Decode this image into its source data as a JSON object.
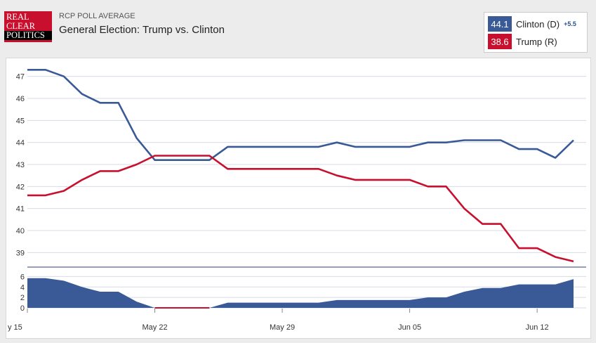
{
  "header": {
    "logo_lines": [
      "REAL",
      "CLEAR",
      "POLITICS"
    ],
    "eyebrow": "RCP POLL AVERAGE",
    "title": "General Election: Trump vs. Clinton"
  },
  "legend": {
    "clinton": {
      "value": "44.1",
      "label": "Clinton (D)",
      "spread": "+5.5",
      "color": "#3a5a97"
    },
    "trump": {
      "value": "38.6",
      "label": "Trump (R)",
      "color": "#c8102e"
    }
  },
  "chart_data": {
    "type": "line",
    "x_labels": [
      "y 15",
      "May 22",
      "May 29",
      "Jun 05",
      "Jun 12"
    ],
    "x_label_day": [
      0,
      7,
      14,
      21,
      28
    ],
    "xlim": [
      0,
      30
    ],
    "ylim": [
      38.5,
      47.5
    ],
    "yticks": [
      39,
      40,
      41,
      42,
      43,
      44,
      45,
      46,
      47
    ],
    "grid": true,
    "series": [
      {
        "name": "Clinton (D)",
        "color": "#3a5a97",
        "points": [
          [
            0,
            47.3
          ],
          [
            1,
            47.3
          ],
          [
            2,
            47.0
          ],
          [
            3,
            46.2
          ],
          [
            4,
            45.8
          ],
          [
            5,
            45.8
          ],
          [
            6,
            44.2
          ],
          [
            7,
            43.2
          ],
          [
            8,
            43.2
          ],
          [
            9,
            43.2
          ],
          [
            10,
            43.2
          ],
          [
            11,
            43.8
          ],
          [
            12,
            43.8
          ],
          [
            13,
            43.8
          ],
          [
            14,
            43.8
          ],
          [
            15,
            43.8
          ],
          [
            16,
            43.8
          ],
          [
            17,
            44.0
          ],
          [
            18,
            43.8
          ],
          [
            19,
            43.8
          ],
          [
            20,
            43.8
          ],
          [
            21,
            43.8
          ],
          [
            22,
            44.0
          ],
          [
            23,
            44.0
          ],
          [
            24,
            44.1
          ],
          [
            25,
            44.1
          ],
          [
            26,
            44.1
          ],
          [
            27,
            43.7
          ],
          [
            28,
            43.7
          ],
          [
            29,
            43.3
          ],
          [
            30,
            44.1
          ]
        ]
      },
      {
        "name": "Trump (R)",
        "color": "#c8102e",
        "points": [
          [
            0,
            41.6
          ],
          [
            1,
            41.6
          ],
          [
            2,
            41.8
          ],
          [
            3,
            42.3
          ],
          [
            4,
            42.7
          ],
          [
            5,
            42.7
          ],
          [
            6,
            43.0
          ],
          [
            7,
            43.4
          ],
          [
            8,
            43.4
          ],
          [
            9,
            43.4
          ],
          [
            10,
            43.4
          ],
          [
            11,
            42.8
          ],
          [
            12,
            42.8
          ],
          [
            13,
            42.8
          ],
          [
            14,
            42.8
          ],
          [
            15,
            42.8
          ],
          [
            16,
            42.8
          ],
          [
            17,
            42.5
          ],
          [
            18,
            42.3
          ],
          [
            19,
            42.3
          ],
          [
            20,
            42.3
          ],
          [
            21,
            42.3
          ],
          [
            22,
            42.0
          ],
          [
            23,
            42.0
          ],
          [
            24,
            41.0
          ],
          [
            25,
            40.3
          ],
          [
            26,
            40.3
          ],
          [
            27,
            39.2
          ],
          [
            28,
            39.2
          ],
          [
            29,
            38.8
          ],
          [
            30,
            38.6
          ]
        ]
      }
    ],
    "spread": {
      "ylim": [
        0,
        7
      ],
      "yticks": [
        0,
        2,
        4,
        6
      ],
      "color": "#3a5a97",
      "points": [
        [
          0,
          5.7
        ],
        [
          1,
          5.7
        ],
        [
          2,
          5.2
        ],
        [
          3,
          4.0
        ],
        [
          4,
          3.1
        ],
        [
          5,
          3.1
        ],
        [
          6,
          1.2
        ],
        [
          7,
          0
        ],
        [
          8,
          0
        ],
        [
          9,
          0
        ],
        [
          10,
          0
        ],
        [
          11,
          1.0
        ],
        [
          12,
          1.0
        ],
        [
          13,
          1.0
        ],
        [
          14,
          1.0
        ],
        [
          15,
          1.0
        ],
        [
          16,
          1.0
        ],
        [
          17,
          1.5
        ],
        [
          18,
          1.5
        ],
        [
          19,
          1.5
        ],
        [
          20,
          1.5
        ],
        [
          21,
          1.5
        ],
        [
          22,
          2.0
        ],
        [
          23,
          2.0
        ],
        [
          24,
          3.1
        ],
        [
          25,
          3.8
        ],
        [
          26,
          3.8
        ],
        [
          27,
          4.5
        ],
        [
          28,
          4.5
        ],
        [
          29,
          4.5
        ],
        [
          30,
          5.5
        ]
      ]
    }
  }
}
